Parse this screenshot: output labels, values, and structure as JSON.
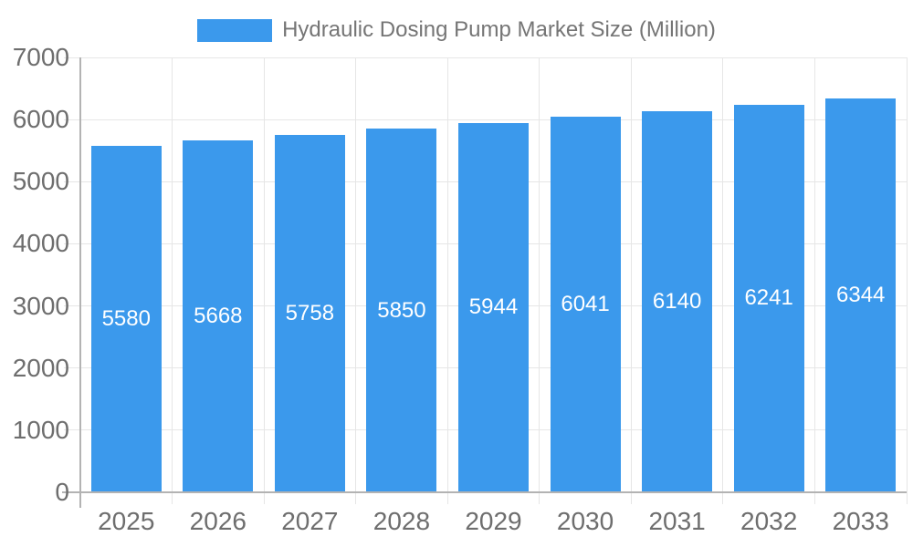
{
  "chart_data": {
    "type": "bar",
    "title": "Hydraulic Dosing Pump Market Size (Million)",
    "legend": {
      "position": "top",
      "entries": [
        "Hydraulic Dosing Pump Market Size (Million)"
      ]
    },
    "categories": [
      "2025",
      "2026",
      "2027",
      "2028",
      "2029",
      "2030",
      "2031",
      "2032",
      "2033"
    ],
    "series": [
      {
        "name": "Hydraulic Dosing Pump Market Size (Million)",
        "values": [
          5580,
          5668,
          5758,
          5850,
          5944,
          6041,
          6140,
          6241,
          6344
        ]
      }
    ],
    "value_labels_shown": true,
    "xlabel": "",
    "ylabel": "",
    "ylim": [
      0,
      7000
    ],
    "ytick_step": 1000,
    "ytick_labels": [
      "0",
      "1000",
      "2000",
      "3000",
      "4000",
      "5000",
      "6000",
      "7000"
    ],
    "grid": true,
    "colors": {
      "bar": "#3B99EC",
      "grid": "#e6e6e6",
      "axis": "#b3b3b3",
      "tick_text": "#6e6e6e",
      "legend_text": "#757575",
      "bar_value_text": "#ffffff",
      "background": "#ffffff"
    }
  }
}
